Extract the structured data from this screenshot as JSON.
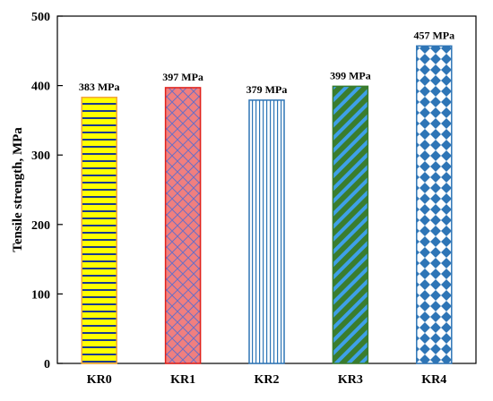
{
  "chart_data": {
    "type": "bar",
    "ylabel": "Tensile strength, MPa",
    "xlabel": "",
    "ylim": [
      0,
      500
    ],
    "yticks": [
      0,
      100,
      200,
      300,
      400,
      500
    ],
    "grid": false,
    "categories": [
      "KR0",
      "KR1",
      "KR2",
      "KR3",
      "KR4"
    ],
    "values": [
      383,
      397,
      379,
      399,
      457
    ],
    "data_labels": [
      "383 MPa",
      "397 MPa",
      "379 MPa",
      "399 MPa",
      "457 MPa"
    ],
    "bar_styles": [
      {
        "pattern": "horizontal-stripes",
        "fill": "#ffff00",
        "stripe": "#1a3a8f",
        "border": "#f2a33a"
      },
      {
        "pattern": "brick",
        "fill": "#f07f7f",
        "stripe": "#6b6fc4",
        "border": "#e0201a"
      },
      {
        "pattern": "vertical-lines",
        "fill": "#ffffff",
        "stripe": "#2e75b6",
        "border": "#2e75b6"
      },
      {
        "pattern": "diagonal-stripes",
        "fill": "#3a7d2e",
        "stripe": "#3ea0e8",
        "border": "#3a7d2e"
      },
      {
        "pattern": "diamond-checker",
        "fill": "#ffffff",
        "stripe": "#2e75b6",
        "border": "#2e75b6"
      }
    ]
  }
}
